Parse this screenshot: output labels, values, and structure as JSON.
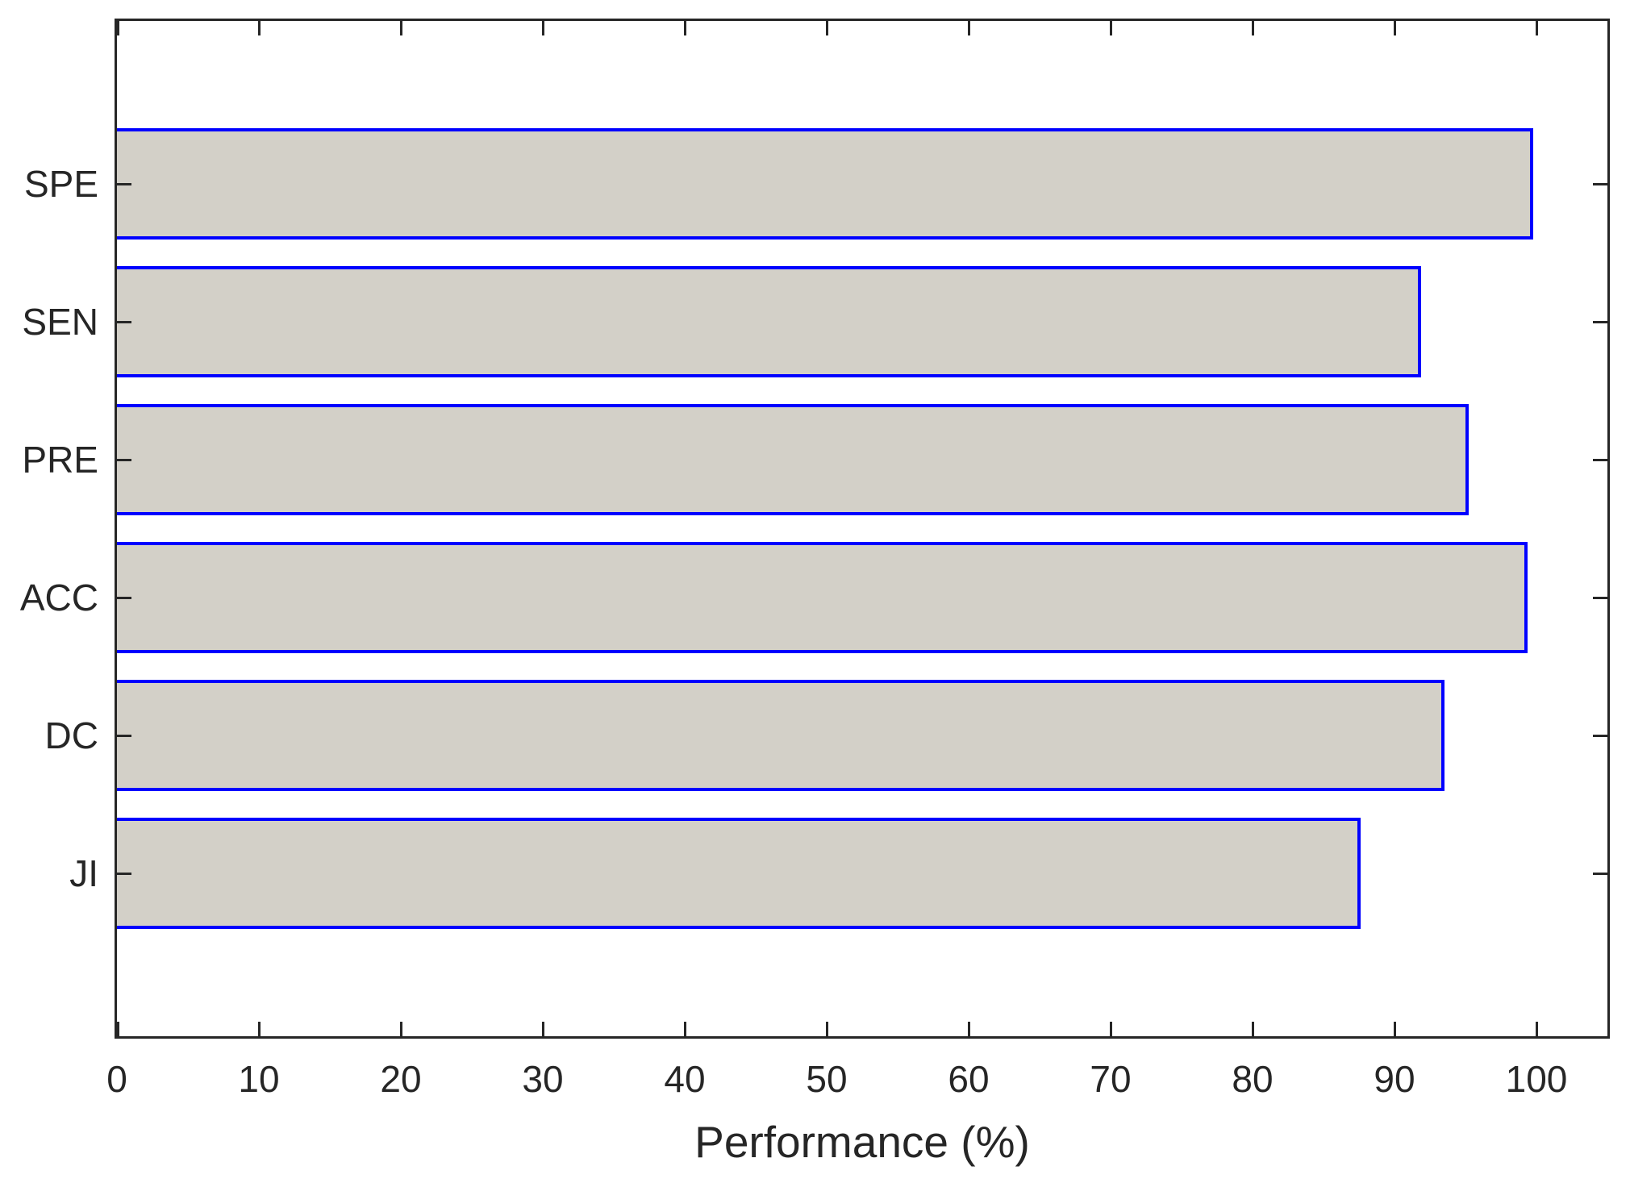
{
  "chart_data": {
    "type": "bar",
    "orientation": "horizontal",
    "title": "",
    "xlabel": "Performance (%)",
    "ylabel": "",
    "categories": [
      "SPE",
      "SEN",
      "PRE",
      "ACC",
      "DC",
      "JI"
    ],
    "values": [
      99.8,
      91.9,
      95.2,
      99.4,
      93.5,
      87.6
    ],
    "xlim": [
      0,
      105
    ],
    "xticks": [
      0,
      10,
      20,
      30,
      40,
      50,
      60,
      70,
      80,
      90,
      100
    ],
    "grid": false,
    "legend": null,
    "tick_style": "inward, mirrored on all four sides",
    "colors": {
      "background": "#ffffff",
      "bar_fill": "#d3d0c8",
      "bar_edge": "#0000ff",
      "axis": "#262626",
      "text": "#262626"
    }
  }
}
